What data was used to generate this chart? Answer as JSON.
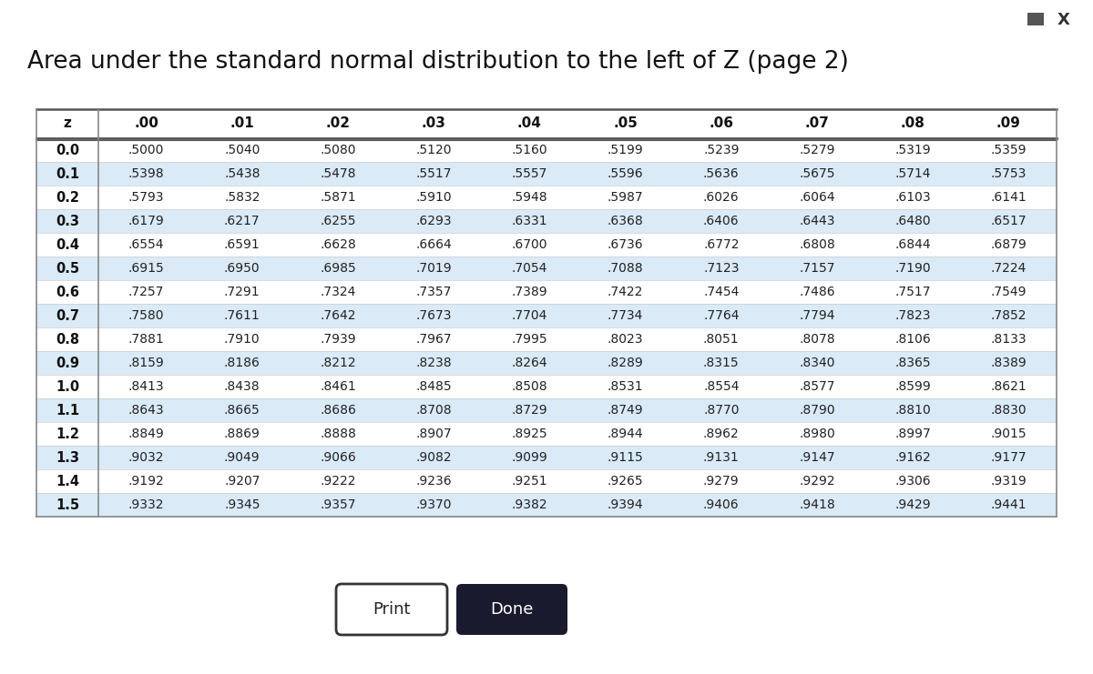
{
  "title": "Area under the standard normal distribution to the left of Z (page 2)",
  "title_fontsize": 19,
  "background_color": "#ffffff",
  "z_values": [
    "0.0",
    "0.1",
    "0.2",
    "0.3",
    "0.4",
    "0.5",
    "0.6",
    "0.7",
    "0.8",
    "0.9",
    "1.0",
    "1.1",
    "1.2",
    "1.3",
    "1.4",
    "1.5"
  ],
  "col_headers": [
    "z",
    ".00",
    ".01",
    ".02",
    ".03",
    ".04",
    ".05",
    ".06",
    ".07",
    ".08",
    ".09"
  ],
  "table_data": [
    [
      ".5000",
      ".5040",
      ".5080",
      ".5120",
      ".5160",
      ".5199",
      ".5239",
      ".5279",
      ".5319",
      ".5359"
    ],
    [
      ".5398",
      ".5438",
      ".5478",
      ".5517",
      ".5557",
      ".5596",
      ".5636",
      ".5675",
      ".5714",
      ".5753"
    ],
    [
      ".5793",
      ".5832",
      ".5871",
      ".5910",
      ".5948",
      ".5987",
      ".6026",
      ".6064",
      ".6103",
      ".6141"
    ],
    [
      ".6179",
      ".6217",
      ".6255",
      ".6293",
      ".6331",
      ".6368",
      ".6406",
      ".6443",
      ".6480",
      ".6517"
    ],
    [
      ".6554",
      ".6591",
      ".6628",
      ".6664",
      ".6700",
      ".6736",
      ".6772",
      ".6808",
      ".6844",
      ".6879"
    ],
    [
      ".6915",
      ".6950",
      ".6985",
      ".7019",
      ".7054",
      ".7088",
      ".7123",
      ".7157",
      ".7190",
      ".7224"
    ],
    [
      ".7257",
      ".7291",
      ".7324",
      ".7357",
      ".7389",
      ".7422",
      ".7454",
      ".7486",
      ".7517",
      ".7549"
    ],
    [
      ".7580",
      ".7611",
      ".7642",
      ".7673",
      ".7704",
      ".7734",
      ".7764",
      ".7794",
      ".7823",
      ".7852"
    ],
    [
      ".7881",
      ".7910",
      ".7939",
      ".7967",
      ".7995",
      ".8023",
      ".8051",
      ".8078",
      ".8106",
      ".8133"
    ],
    [
      ".8159",
      ".8186",
      ".8212",
      ".8238",
      ".8264",
      ".8289",
      ".8315",
      ".8340",
      ".8365",
      ".8389"
    ],
    [
      ".8413",
      ".8438",
      ".8461",
      ".8485",
      ".8508",
      ".8531",
      ".8554",
      ".8577",
      ".8599",
      ".8621"
    ],
    [
      ".8643",
      ".8665",
      ".8686",
      ".8708",
      ".8729",
      ".8749",
      ".8770",
      ".8790",
      ".8810",
      ".8830"
    ],
    [
      ".8849",
      ".8869",
      ".8888",
      ".8907",
      ".8925",
      ".8944",
      ".8962",
      ".8980",
      ".8997",
      ".9015"
    ],
    [
      ".9032",
      ".9049",
      ".9066",
      ".9082",
      ".9099",
      ".9115",
      ".9131",
      ".9147",
      ".9162",
      ".9177"
    ],
    [
      ".9192",
      ".9207",
      ".9222",
      ".9236",
      ".9251",
      ".9265",
      ".9279",
      ".9292",
      ".9306",
      ".9319"
    ],
    [
      ".9332",
      ".9345",
      ".9357",
      ".9370",
      ".9382",
      ".9394",
      ".9406",
      ".9418",
      ".9429",
      ".9441"
    ]
  ],
  "row_highlight_color": "#daeaf7",
  "row_normal_color": "#ffffff",
  "z_col_highlight": "#daeaf7",
  "z_col_normal": "#ffffff",
  "header_bg": "#ffffff",
  "table_border_color": "#555555",
  "header_line_color": "#555555",
  "print_btn_text": "Print",
  "done_btn_text_label": "Done",
  "window_minus_color": "#555555",
  "window_x_color": "#333333"
}
